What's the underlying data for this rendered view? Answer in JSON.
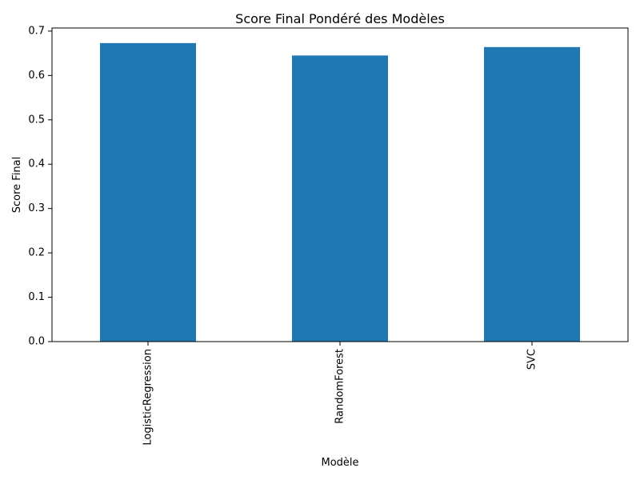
{
  "chart_data": {
    "type": "bar",
    "title": "Score Final Pondéré des Modèles",
    "xlabel": "Modèle",
    "ylabel": "Score Final",
    "categories": [
      "LogisticRegression",
      "RandomForest",
      "SVC"
    ],
    "values": [
      0.673,
      0.645,
      0.664
    ],
    "ylim": [
      0,
      0.707
    ],
    "yticks": [
      "0.0",
      "0.1",
      "0.2",
      "0.3",
      "0.4",
      "0.5",
      "0.6",
      "0.7"
    ],
    "grid": false,
    "legend": "none",
    "bar_color": "#1f77b4"
  }
}
